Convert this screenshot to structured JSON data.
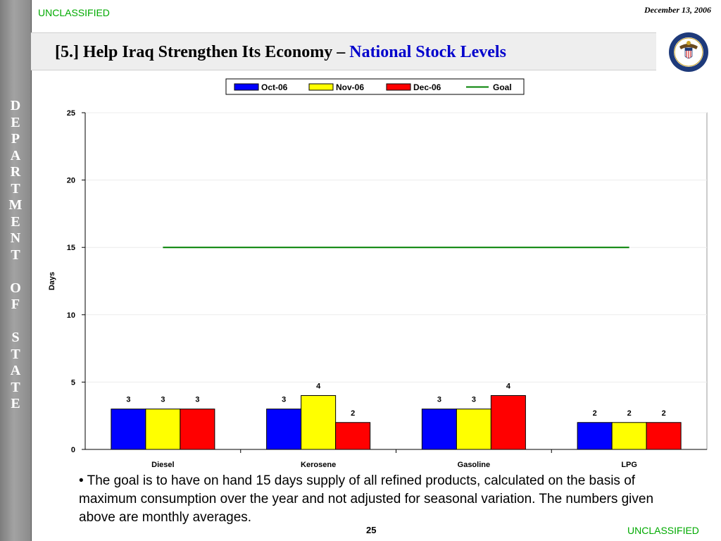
{
  "header": {
    "classification_top": "UNCLASSIFIED",
    "date": "December 13, 2006",
    "title_main": "[5.] Help Iraq Strengthen Its Economy – ",
    "title_highlight": "National Stock Levels"
  },
  "sidebar": {
    "letters": [
      "D",
      "E",
      "P",
      "A",
      "R",
      "T",
      "M",
      "E",
      "N",
      "T",
      "",
      "O",
      "F",
      "",
      "S",
      "T",
      "A",
      "T",
      "E"
    ]
  },
  "seal": {
    "icon": "department-of-state-seal-icon"
  },
  "chart_data": {
    "type": "bar",
    "categories": [
      "Diesel",
      "Kerosene",
      "Gasoline",
      "LPG"
    ],
    "series": [
      {
        "name": "Oct-06",
        "values": [
          3,
          3,
          3,
          2
        ],
        "color": "#0000ff"
      },
      {
        "name": "Nov-06",
        "values": [
          3,
          4,
          3,
          2
        ],
        "color": "#ffff00"
      },
      {
        "name": "Dec-06",
        "values": [
          3,
          2,
          4,
          2
        ],
        "color": "#ff0000"
      }
    ],
    "goal": {
      "name": "Goal",
      "value": 15,
      "color": "#008000"
    },
    "ylabel": "Days",
    "ylim": [
      0,
      25
    ],
    "yticks": [
      0,
      5,
      10,
      15,
      20,
      25
    ],
    "legend_position": "top-center",
    "grid": true
  },
  "note": {
    "bullet": "•",
    "text": "The goal is to have on hand 15 days supply of all refined products, calculated on the basis of maximum consumption over the year and not adjusted for seasonal variation.  The numbers given above are monthly averages."
  },
  "footer": {
    "page_number": "25",
    "classification_bottom": "UNCLASSIFIED"
  }
}
